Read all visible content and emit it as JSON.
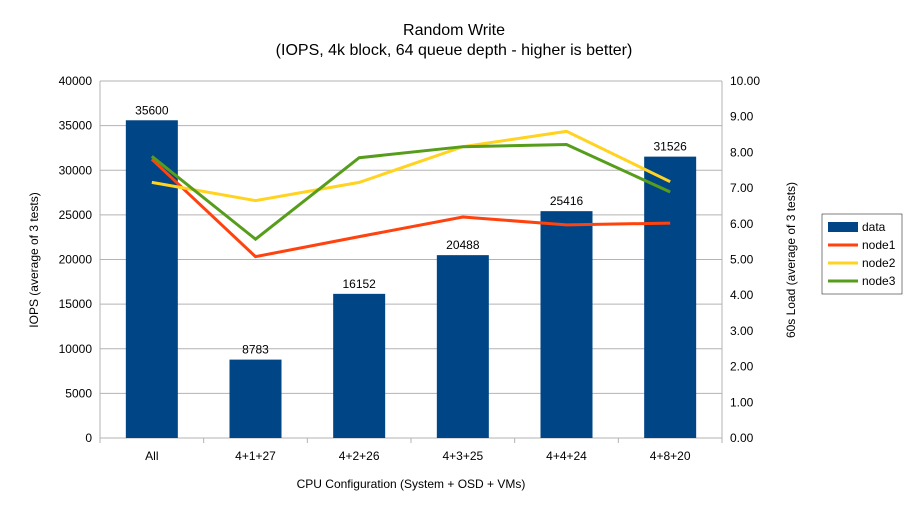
{
  "chart_data": {
    "type": "bar+line",
    "title": "Random Write",
    "subtitle": "(IOPS, 4k block, 64 queue depth - higher is better)",
    "xlabel": "CPU Configuration (System + OSD + VMs)",
    "ylabel": "IOPS (average of 3 tests)",
    "y2label": "60s Load (average of 3 tests)",
    "categories": [
      "All",
      "4+1+27",
      "4+2+26",
      "4+3+25",
      "4+4+24",
      "4+8+20"
    ],
    "ylim": [
      0,
      40000
    ],
    "y_ticks": [
      "0",
      "5000",
      "10000",
      "15000",
      "20000",
      "25000",
      "30000",
      "35000",
      "40000"
    ],
    "y2lim": [
      0,
      10
    ],
    "y2_ticks": [
      "0.00",
      "1.00",
      "2.00",
      "3.00",
      "4.00",
      "5.00",
      "6.00",
      "7.00",
      "8.00",
      "9.00",
      "10.00"
    ],
    "grid": true,
    "legend_position": "right",
    "bar_series": {
      "name": "data",
      "color": "#004586",
      "values": [
        35600,
        8783,
        16152,
        20488,
        25416,
        31526
      ],
      "labels": [
        "35600",
        "8783",
        "16152",
        "20488",
        "25416",
        "31526"
      ]
    },
    "line_series": [
      {
        "name": "node1",
        "color": "#ff420e",
        "axis": "right",
        "values": [
          7.81,
          5.08,
          5.64,
          6.19,
          5.97,
          6.02
        ]
      },
      {
        "name": "node2",
        "color": "#ffd320",
        "axis": "right",
        "values": [
          7.16,
          6.65,
          7.16,
          8.16,
          8.59,
          7.18
        ]
      },
      {
        "name": "node3",
        "color": "#579d1c",
        "axis": "right",
        "values": [
          7.89,
          5.57,
          7.85,
          8.16,
          8.22,
          6.89
        ]
      }
    ]
  }
}
